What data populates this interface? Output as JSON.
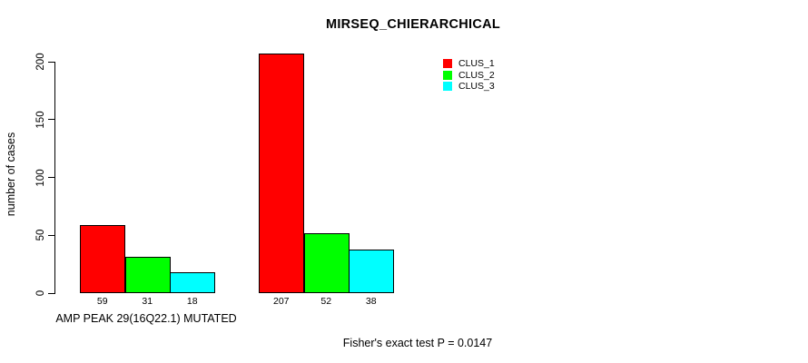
{
  "title": "MIRSEQ_CHIERARCHICAL",
  "chart_data": {
    "type": "bar",
    "title": "MIRSEQ_CHIERARCHICAL",
    "xlabel": "AMP PEAK 29(16Q22.1) MUTATED",
    "ylabel": "number of cases",
    "ylim": [
      0,
      200
    ],
    "yticks": [
      0,
      50,
      100,
      150,
      200
    ],
    "grid": false,
    "legend_position": "top-right",
    "series": [
      {
        "name": "CLUS_1",
        "color": "#ff0000"
      },
      {
        "name": "CLUS_2",
        "color": "#00ff00"
      },
      {
        "name": "CLUS_3",
        "color": "#00ffff"
      }
    ],
    "groups": [
      {
        "label": "AMP PEAK 29(16Q22.1) MUTATED",
        "values": [
          59,
          31,
          18
        ]
      },
      {
        "label": "",
        "values": [
          207,
          52,
          38
        ]
      }
    ],
    "bar_border_color": "#000000",
    "annotation": "Fisher's exact test P = 0.0147"
  }
}
